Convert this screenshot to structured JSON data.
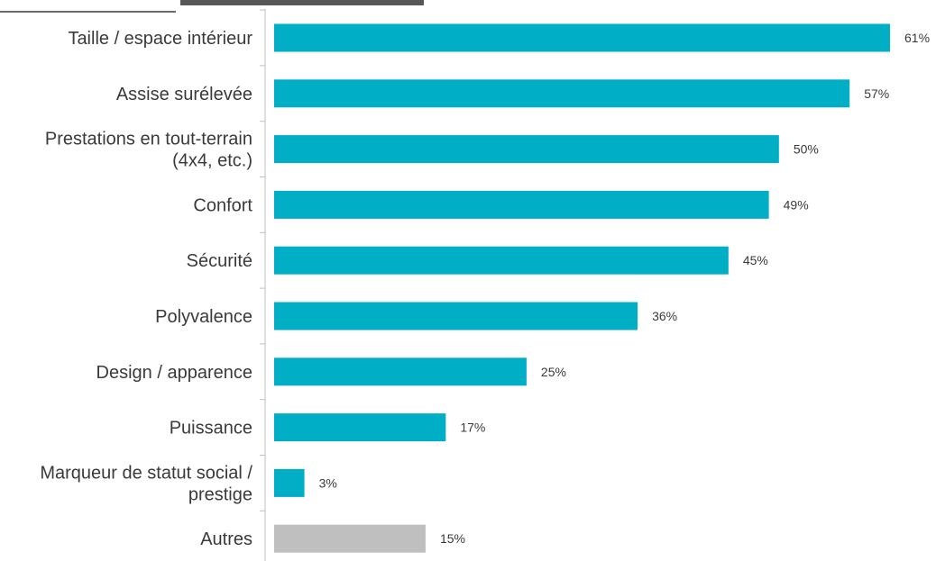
{
  "chart_data": {
    "type": "bar",
    "orientation": "horizontal",
    "title": "",
    "xlabel": "",
    "ylabel": "",
    "xlim": [
      0,
      61
    ],
    "grid": false,
    "legend": "none",
    "categories": [
      "Taille / espace intérieur",
      "Assise surélevée",
      "Prestations en tout-terrain\n(4x4, etc.)",
      "Confort",
      "Sécurité",
      "Polyvalence",
      "Design / apparence",
      "Puissance",
      "Marqueur de statut social /\nprestige",
      "Autres"
    ],
    "values": [
      61,
      57,
      50,
      49,
      45,
      36,
      25,
      17,
      3,
      15
    ],
    "value_labels": [
      "61%",
      "57%",
      "50%",
      "49%",
      "45%",
      "36%",
      "25%",
      "17%",
      "3%",
      "15%"
    ],
    "colors": {
      "bar": "#00AFC6",
      "other_bar": "#BFBFBF",
      "axis": "#BFBFBF",
      "text": "#3A3A3A"
    },
    "special_colored_categories": [
      "Autres"
    ]
  }
}
